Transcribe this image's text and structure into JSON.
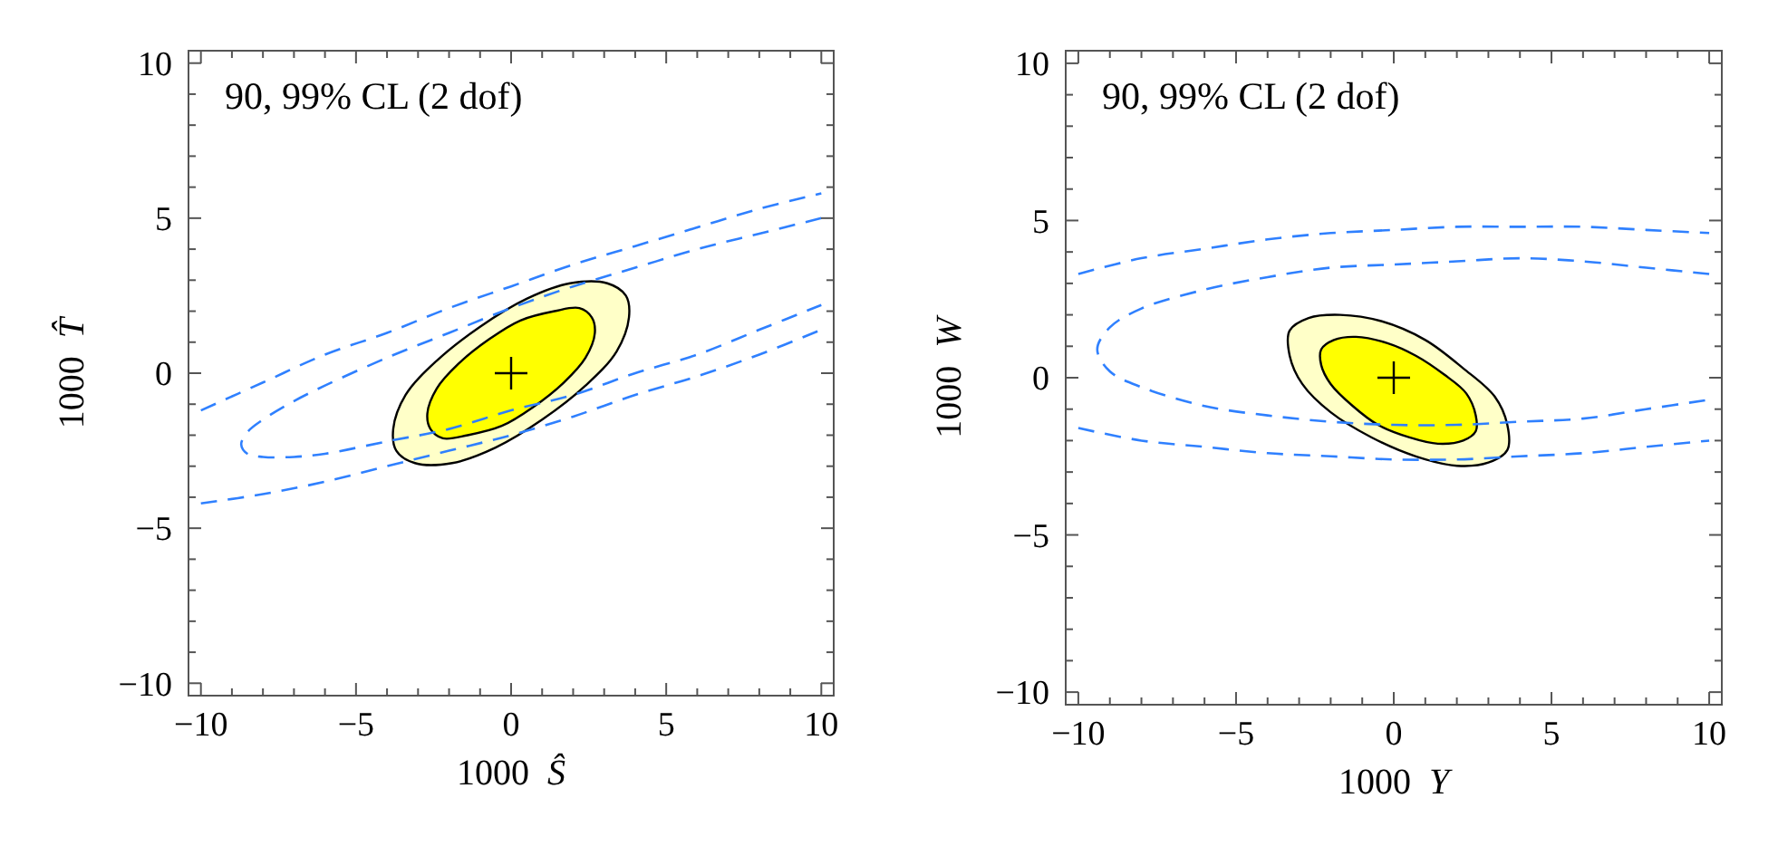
{
  "chart_data": [
    {
      "type": "line",
      "line_style": "dashed",
      "xlabel": "1000 Ŝ",
      "ylabel": "1000 T̂",
      "annotations": [
        "90, 99% CL (2 dof)"
      ],
      "xlim": [
        -10.4,
        10.4
      ],
      "ylim": [
        -10.4,
        10.4
      ],
      "xticks": [
        -10,
        {
          "value": -9,
          "label": null
        },
        {
          "value": -8,
          "label": null
        },
        {
          "value": -7,
          "label": null
        },
        {
          "value": -6,
          "label": null
        },
        -5,
        {
          "value": -4,
          "label": null
        },
        {
          "value": -3,
          "label": null
        },
        {
          "value": -2,
          "label": null
        },
        {
          "value": -1,
          "label": null
        },
        0,
        {
          "value": 1,
          "label": null
        },
        {
          "value": 2,
          "label": null
        },
        {
          "value": 3,
          "label": null
        },
        {
          "value": 4,
          "label": null
        },
        5,
        {
          "value": 6,
          "label": null
        },
        {
          "value": 7,
          "label": null
        },
        {
          "value": 8,
          "label": null
        },
        {
          "value": 9,
          "label": null
        },
        10
      ],
      "yticks": [
        -10,
        {
          "value": -9,
          "label": null
        },
        {
          "value": -8,
          "label": null
        },
        {
          "value": -7,
          "label": null
        },
        {
          "value": -6,
          "label": null
        },
        -5,
        {
          "value": -4,
          "label": null
        },
        {
          "value": -3,
          "label": null
        },
        {
          "value": -2,
          "label": null
        },
        {
          "value": -1,
          "label": null
        },
        0,
        {
          "value": 1,
          "label": null
        },
        {
          "value": 2,
          "label": null
        },
        {
          "value": 3,
          "label": null
        },
        {
          "value": 4,
          "label": null
        },
        5,
        {
          "value": 6,
          "label": null
        },
        {
          "value": 7,
          "label": null
        },
        {
          "value": 8,
          "label": null
        },
        {
          "value": 9,
          "label": null
        },
        10
      ],
      "series": [
        {
          "type": "area",
          "color": "#ffffc8",
          "x": [
            3.7,
            3.1,
            1.9,
            0.5,
            -1.0,
            -2.4,
            -3.4,
            -3.8,
            -3.7,
            -3.1,
            -1.9,
            -0.5,
            1.0,
            2.4,
            3.4,
            3.8
          ],
          "values": [
            2.5,
            2.9,
            2.9,
            2.4,
            1.5,
            0.4,
            -0.7,
            -1.8,
            -2.5,
            -2.9,
            -2.9,
            -2.4,
            -1.5,
            -0.4,
            0.7,
            1.8
          ]
        },
        {
          "type": "area",
          "color": "#ffff00",
          "x": [
            2.6,
            2.2,
            1.4,
            0.3,
            -0.7,
            -1.7,
            -2.4,
            -2.7,
            -2.6,
            -2.2,
            -1.4,
            -0.3,
            0.7,
            1.7,
            2.4,
            2.7
          ],
          "values": [
            1.8,
            2.1,
            2.0,
            1.7,
            1.1,
            0.3,
            -0.5,
            -1.3,
            -1.8,
            -2.1,
            -2.0,
            -1.7,
            -1.1,
            -0.3,
            0.5,
            1.3
          ]
        },
        {
          "color": "#2f80ff",
          "x": [
            -10,
            -8,
            -6,
            -4,
            -2,
            0,
            2,
            4,
            6,
            8,
            10
          ],
          "values": [
            -1.2,
            -0.3,
            0.6,
            1.3,
            2.1,
            2.8,
            3.5,
            4.1,
            4.7,
            5.3,
            5.8
          ]
        },
        {
          "color": "#2f80ff",
          "x": [
            -10,
            -8,
            -6,
            -4,
            -2,
            0,
            2,
            4,
            6,
            8,
            10
          ],
          "values": [
            -4.2,
            -3.9,
            -3.5,
            -3.0,
            -2.5,
            -2.0,
            -1.4,
            -0.7,
            -0.1,
            0.6,
            1.4
          ]
        },
        {
          "color": "#2f80ff",
          "x": [
            10,
            8,
            6,
            4,
            2,
            0,
            -2,
            -4,
            -6,
            -7,
            -8,
            -8.5,
            -8.7,
            -8.5,
            -8,
            -7,
            -6,
            -4,
            -2,
            0,
            2,
            4,
            6,
            8,
            10
          ],
          "values": [
            5.0,
            4.5,
            4.0,
            3.4,
            2.8,
            2.1,
            1.3,
            0.5,
            -0.4,
            -0.9,
            -1.5,
            -1.9,
            -2.3,
            -2.6,
            -2.7,
            -2.7,
            -2.6,
            -2.2,
            -1.8,
            -1.2,
            -0.7,
            0.0,
            0.6,
            1.4,
            2.2
          ]
        },
        {
          "type": "scatter",
          "marker": "cross",
          "color": "#000000",
          "x": [
            0
          ],
          "values": [
            0
          ]
        }
      ]
    },
    {
      "type": "line",
      "line_style": "dashed",
      "xlabel": "1000 Y",
      "ylabel": "1000 W",
      "annotations": [
        "90, 99% CL (2 dof)"
      ],
      "xlim": [
        -10.4,
        10.4
      ],
      "ylim": [
        -10.4,
        10.4
      ],
      "xticks": [
        -10,
        {
          "value": -9,
          "label": null
        },
        {
          "value": -8,
          "label": null
        },
        {
          "value": -7,
          "label": null
        },
        {
          "value": -6,
          "label": null
        },
        -5,
        {
          "value": -4,
          "label": null
        },
        {
          "value": -3,
          "label": null
        },
        {
          "value": -2,
          "label": null
        },
        {
          "value": -1,
          "label": null
        },
        0,
        {
          "value": 1,
          "label": null
        },
        {
          "value": 2,
          "label": null
        },
        {
          "value": 3,
          "label": null
        },
        {
          "value": 4,
          "label": null
        },
        5,
        {
          "value": 6,
          "label": null
        },
        {
          "value": 7,
          "label": null
        },
        {
          "value": 8,
          "label": null
        },
        {
          "value": 9,
          "label": null
        },
        10
      ],
      "yticks": [
        -10,
        {
          "value": -9,
          "label": null
        },
        {
          "value": -8,
          "label": null
        },
        {
          "value": -7,
          "label": null
        },
        {
          "value": -6,
          "label": null
        },
        -5,
        {
          "value": -4,
          "label": null
        },
        {
          "value": -3,
          "label": null
        },
        {
          "value": -2,
          "label": null
        },
        {
          "value": -1,
          "label": null
        },
        0,
        {
          "value": 1,
          "label": null
        },
        {
          "value": 2,
          "label": null
        },
        {
          "value": 3,
          "label": null
        },
        {
          "value": 4,
          "label": null
        },
        5,
        {
          "value": 6,
          "label": null
        },
        {
          "value": 7,
          "label": null
        },
        {
          "value": 8,
          "label": null
        },
        {
          "value": 9,
          "label": null
        },
        10
      ],
      "series": [
        {
          "type": "area",
          "color": "#ffffc8",
          "x": [
            3.6,
            3.6,
            3.2,
            2.2,
            1.0,
            -0.4,
            -1.7,
            -2.7,
            -3.3,
            -3.3,
            -2.9,
            -2.0,
            -0.7,
            0.7,
            2.0,
            3.0
          ],
          "values": [
            -2.3,
            -1.5,
            -0.6,
            0.3,
            1.2,
            1.8,
            2.0,
            1.9,
            1.5,
            0.7,
            -0.2,
            -1.1,
            -1.9,
            -2.5,
            -2.8,
            -2.7
          ]
        },
        {
          "type": "area",
          "color": "#ffff00",
          "x": [
            2.6,
            2.6,
            2.3,
            1.6,
            0.7,
            -0.2,
            -1.2,
            -1.9,
            -2.3,
            -2.3,
            -2.0,
            -1.3,
            -0.5,
            0.5,
            1.4,
            2.2
          ],
          "values": [
            -1.7,
            -1.2,
            -0.5,
            0.1,
            0.7,
            1.1,
            1.3,
            1.2,
            0.9,
            0.4,
            -0.2,
            -0.9,
            -1.5,
            -1.9,
            -2.1,
            -2.0
          ]
        },
        {
          "color": "#2f80ff",
          "x": [
            -10,
            -8,
            -6,
            -4,
            -2,
            0,
            2,
            4,
            6,
            8,
            10
          ],
          "values": [
            3.3,
            3.8,
            4.1,
            4.4,
            4.6,
            4.7,
            4.8,
            4.8,
            4.8,
            4.7,
            4.6
          ]
        },
        {
          "color": "#2f80ff",
          "x": [
            -10,
            -8,
            -6,
            -4,
            -2,
            0,
            2,
            4,
            6,
            8,
            10
          ],
          "values": [
            -1.6,
            -2.0,
            -2.2,
            -2.4,
            -2.5,
            -2.6,
            -2.6,
            -2.5,
            -2.4,
            -2.2,
            -2.0
          ]
        },
        {
          "color": "#2f80ff",
          "x": [
            10,
            8,
            6,
            4,
            2,
            0,
            -2,
            -4,
            -6,
            -8,
            -9,
            -9.4,
            -9,
            -8,
            -6,
            -4,
            -2,
            0,
            2,
            4,
            6,
            8,
            10
          ],
          "values": [
            3.3,
            3.5,
            3.7,
            3.8,
            3.7,
            3.6,
            3.5,
            3.2,
            2.8,
            2.2,
            1.6,
            0.9,
            0.2,
            -0.3,
            -0.9,
            -1.2,
            -1.4,
            -1.5,
            -1.5,
            -1.4,
            -1.3,
            -1.0,
            -0.7
          ]
        },
        {
          "type": "scatter",
          "marker": "cross",
          "color": "#000000",
          "x": [
            0
          ],
          "values": [
            0
          ]
        }
      ]
    }
  ]
}
